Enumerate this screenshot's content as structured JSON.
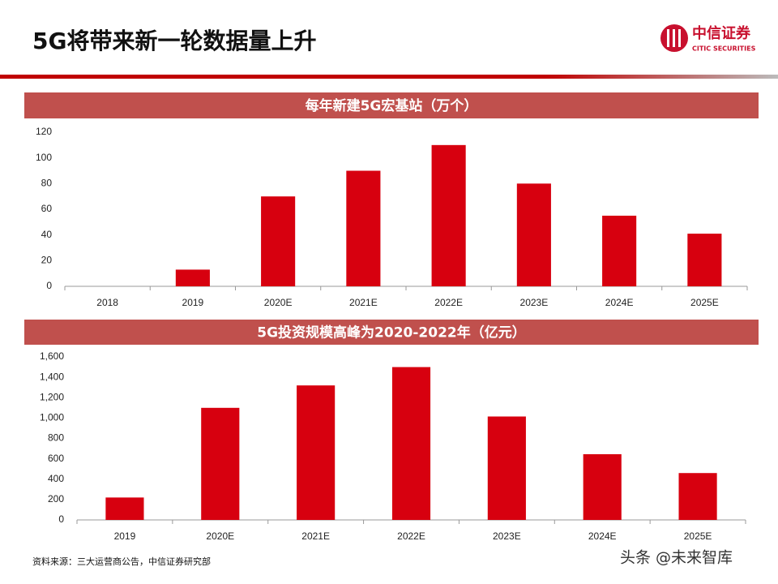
{
  "title": "5G将带来新一轮数据量上升",
  "logo": {
    "name": "中信证券",
    "english": "CITIC SECURITIES"
  },
  "source": "资料来源：三大运营商公告，中信证券研究部",
  "watermark": "头条 @未来智库",
  "chart_data": [
    {
      "type": "bar",
      "title": "每年新建5G宏基站（万个）",
      "categories": [
        "2018",
        "2019",
        "2020E",
        "2021E",
        "2022E",
        "2023E",
        "2024E",
        "2025E"
      ],
      "values": [
        0,
        13,
        70,
        90,
        110,
        80,
        55,
        41
      ],
      "color": "#d7000f",
      "ylim": [
        0,
        120
      ],
      "yticks": [
        0,
        20,
        40,
        60,
        80,
        100,
        120
      ]
    },
    {
      "type": "bar",
      "title": "5G投资规模高峰为2020-2022年（亿元）",
      "categories": [
        "2019",
        "2020E",
        "2021E",
        "2022E",
        "2023E",
        "2024E",
        "2025E"
      ],
      "values": [
        220,
        1100,
        1320,
        1500,
        1015,
        645,
        460
      ],
      "color": "#d7000f",
      "ylim": [
        0,
        1600
      ],
      "yticks": [
        0,
        200,
        400,
        600,
        800,
        {
          "value": 1000,
          "label": "1,000"
        },
        {
          "value": 1200,
          "label": "1,200"
        },
        {
          "value": 1400,
          "label": "1,400"
        },
        {
          "value": 1600,
          "label": "1,600"
        }
      ]
    }
  ]
}
